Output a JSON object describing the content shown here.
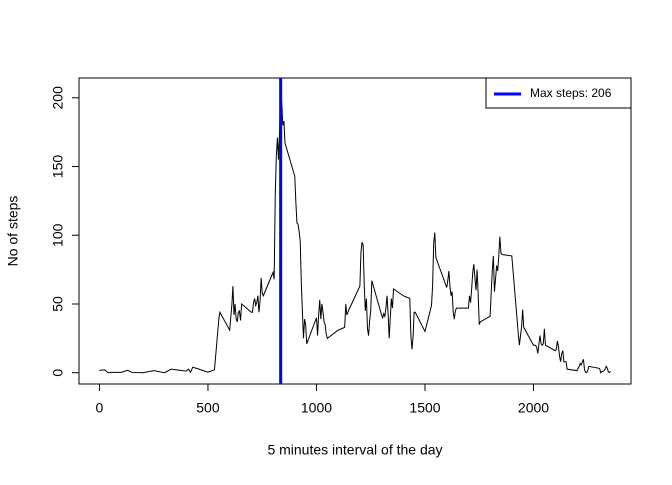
{
  "chart_data": {
    "type": "line",
    "xlabel": "5 minutes interval of the day",
    "ylabel": "No of steps",
    "x": [
      0,
      25,
      40,
      50,
      100,
      130,
      150,
      200,
      250,
      300,
      330,
      400,
      410,
      420,
      430,
      440,
      450,
      500,
      530,
      550,
      555,
      600,
      610,
      615,
      620,
      625,
      630,
      635,
      640,
      645,
      650,
      655,
      700,
      705,
      710,
      715,
      720,
      725,
      730,
      735,
      740,
      745,
      750,
      755,
      800,
      805,
      810,
      815,
      820,
      825,
      830,
      835,
      840,
      845,
      850,
      855,
      900,
      905,
      910,
      915,
      920,
      925,
      930,
      935,
      940,
      945,
      950,
      955,
      1000,
      1005,
      1010,
      1015,
      1020,
      1025,
      1030,
      1035,
      1040,
      1045,
      1050,
      1100,
      1130,
      1135,
      1140,
      1145,
      1150,
      1200,
      1205,
      1210,
      1215,
      1220,
      1225,
      1230,
      1235,
      1240,
      1245,
      1250,
      1255,
      1300,
      1305,
      1310,
      1315,
      1320,
      1325,
      1330,
      1335,
      1340,
      1345,
      1350,
      1355,
      1400,
      1430,
      1435,
      1440,
      1445,
      1450,
      1455,
      1500,
      1530,
      1535,
      1540,
      1545,
      1550,
      1600,
      1605,
      1610,
      1615,
      1620,
      1625,
      1630,
      1635,
      1640,
      1645,
      1700,
      1705,
      1710,
      1715,
      1720,
      1725,
      1730,
      1735,
      1740,
      1745,
      1750,
      1755,
      1800,
      1805,
      1810,
      1815,
      1820,
      1825,
      1830,
      1835,
      1840,
      1845,
      1850,
      1855,
      1900,
      1930,
      1935,
      1940,
      1945,
      1950,
      1955,
      2000,
      2010,
      2015,
      2020,
      2025,
      2030,
      2035,
      2040,
      2045,
      2050,
      2055,
      2100,
      2105,
      2110,
      2115,
      2120,
      2125,
      2130,
      2135,
      2140,
      2145,
      2150,
      2155,
      2200,
      2205,
      2210,
      2215,
      2220,
      2225,
      2230,
      2235,
      2240,
      2245,
      2250,
      2255,
      2300,
      2305,
      2310,
      2315,
      2320,
      2325,
      2330,
      2335,
      2340,
      2345,
      2350,
      2355
    ],
    "series": [
      {
        "color": "#000000",
        "values": [
          1.7,
          2.1,
          0,
          0.3,
          0.3,
          1.8,
          0.3,
          0,
          1.5,
          0,
          2.6,
          1.2,
          2.6,
          0.3,
          4.1,
          3.5,
          3.1,
          0.4,
          2.1,
          39,
          44,
          31,
          49,
          63,
          42,
          50,
          39,
          37,
          44,
          45,
          38,
          50,
          44,
          44,
          51,
          54,
          49,
          51,
          56,
          44,
          52,
          69,
          58,
          56,
          73,
          68,
          129,
          158,
          171,
          155,
          177,
          206,
          196,
          180,
          183,
          167,
          143,
          124,
          109,
          108,
          103,
          96,
          66,
          45,
          25,
          39,
          35,
          21,
          40,
          27,
          42,
          53,
          39,
          50,
          44,
          37,
          35,
          28,
          25,
          31,
          33,
          50,
          42,
          44,
          46,
          63,
          88,
          95,
          93,
          64,
          45,
          54,
          32,
          27,
          38,
          45,
          67,
          42,
          40,
          43,
          41,
          47,
          56,
          43,
          25,
          40,
          54,
          47,
          61,
          56,
          54,
          27,
          17,
          26,
          44,
          44,
          30,
          49,
          63,
          94,
          102,
          84,
          62,
          67,
          74,
          63,
          56,
          59,
          44,
          39,
          45,
          47,
          47,
          56,
          51,
          61,
          73,
          79,
          69,
          60,
          75,
          57,
          35,
          37,
          41,
          58,
          74,
          85,
          59,
          68,
          78,
          74,
          85,
          99,
          87,
          86,
          85,
          28,
          20,
          27,
          33,
          46,
          33,
          20,
          20,
          18,
          14,
          21,
          27,
          21,
          20,
          21,
          32,
          20,
          16,
          17,
          23,
          19,
          12,
          8,
          14,
          16,
          8,
          8,
          8,
          2.6,
          1.5,
          3,
          4.6,
          6.8,
          5.7,
          7.8,
          9.8,
          2.2,
          0.3,
          0.1,
          1.6,
          4.6,
          3.3,
          2.8,
          0,
          0.8,
          1,
          1.6,
          2.6,
          4.7,
          3.3,
          0.6,
          0.2,
          1.1
        ]
      }
    ],
    "vline": {
      "x": 835,
      "color": "#0000ff",
      "name": "Max steps:  206"
    },
    "legend": "top-right",
    "xlim": [
      -94.2,
      2449.2
    ],
    "ylim": [
      -8.2,
      214.4
    ],
    "xticks": [
      0,
      500,
      1000,
      1500,
      2000
    ],
    "yticks": [
      0,
      50,
      100,
      150,
      200
    ]
  }
}
